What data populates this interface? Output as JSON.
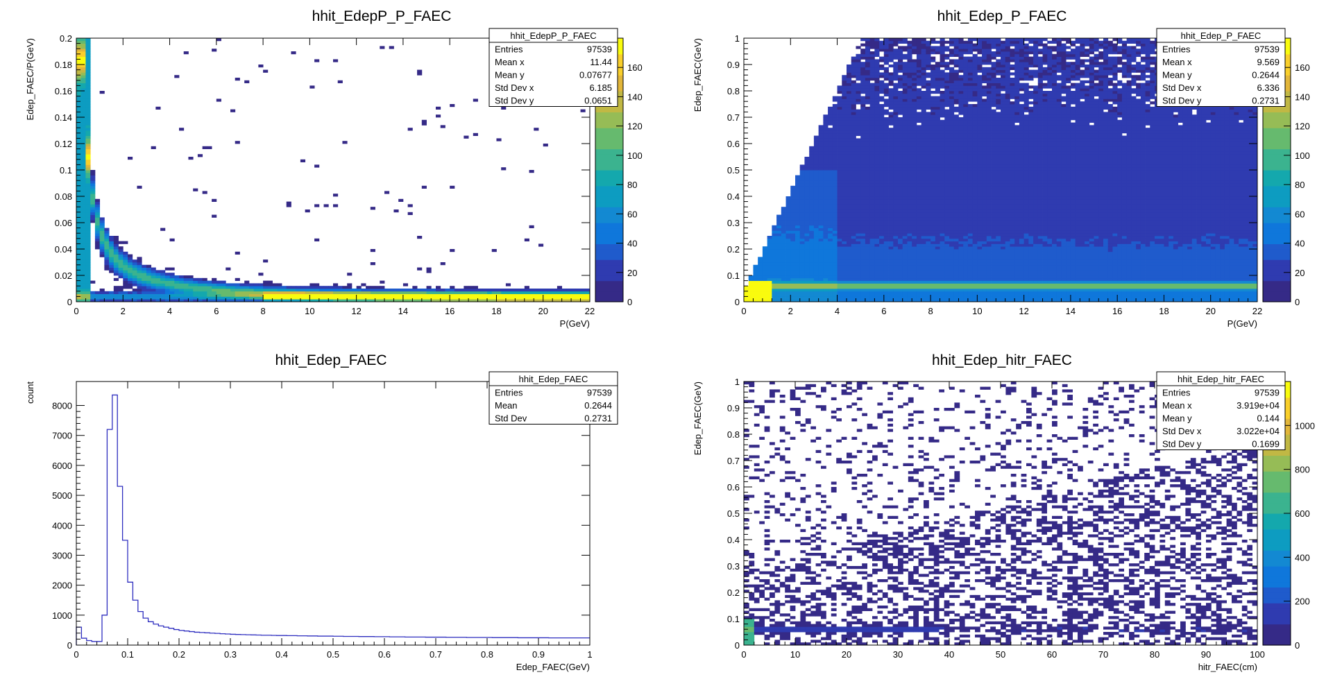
{
  "chart_data": [
    {
      "type": "heatmap",
      "title": "hhit_EdepP_P_FAEC",
      "xlabel": "P(GeV)",
      "ylabel": "Edep_FAEC/P(GeV)",
      "xlim": [
        0,
        22
      ],
      "ylim": [
        0,
        0.2
      ],
      "x_ticks": [
        "0",
        "2",
        "4",
        "6",
        "8",
        "10",
        "12",
        "14",
        "16",
        "18",
        "20",
        "22"
      ],
      "y_ticks": [
        "0",
        "0.02",
        "0.04",
        "0.06",
        "0.08",
        "0.1",
        "0.12",
        "0.14",
        "0.16",
        "0.18",
        "0.2"
      ],
      "z_ticks": [
        "0",
        "20",
        "40",
        "60",
        "80",
        "100",
        "120",
        "140",
        "160"
      ],
      "zlim": [
        0,
        180
      ],
      "grid": false,
      "stats": {
        "name": "hhit_EdepP_P_FAEC",
        "rows": [
          {
            "label": "Entries",
            "value": "97539"
          },
          {
            "label": "Mean x",
            "value": "11.44"
          },
          {
            "label": "Mean y",
            "value": "0.07677"
          },
          {
            "label": "Std Dev x",
            "value": "6.185"
          },
          {
            "label": "Std Dev y",
            "value": "0.0651"
          }
        ]
      },
      "density_model": "E/P band ~ 0.06/P concentrated at low y, ridge near y≈0.004 across P"
    },
    {
      "type": "heatmap",
      "title": "hhit_Edep_P_FAEC",
      "xlabel": "P(GeV)",
      "ylabel": "Edep_FAEC(GeV)",
      "xlim": [
        0,
        22
      ],
      "ylim": [
        0,
        1
      ],
      "x_ticks": [
        "0",
        "2",
        "4",
        "6",
        "8",
        "10",
        "12",
        "14",
        "16",
        "18",
        "20",
        "22"
      ],
      "y_ticks": [
        "0",
        "0.1",
        "0.2",
        "0.3",
        "0.4",
        "0.5",
        "0.6",
        "0.7",
        "0.8",
        "0.9",
        "1"
      ],
      "z_ticks": [
        "0",
        "20",
        "40",
        "60",
        "80",
        "100",
        "120",
        "140",
        "160"
      ],
      "zlim": [
        0,
        180
      ],
      "grid": false,
      "stats": {
        "name": "hhit_Edep_P_FAEC",
        "rows": [
          {
            "label": "Entries",
            "value": "97539"
          },
          {
            "label": "Mean x",
            "value": "9.569"
          },
          {
            "label": "Mean y",
            "value": "0.2644"
          },
          {
            "label": "Std Dev x",
            "value": "6.336"
          },
          {
            "label": "Std Dev y",
            "value": "0.2731"
          }
        ]
      },
      "density_model": "ridge at Edep≈0.06 GeV across all P, diffuse population above, empty wedge at low P high Edep"
    },
    {
      "type": "line",
      "title": "hhit_Edep_FAEC",
      "xlabel": "Edep_FAEC(GeV)",
      "ylabel": "count",
      "xlim": [
        0,
        1
      ],
      "ylim": [
        0,
        8800
      ],
      "x_ticks": [
        "0",
        "0.1",
        "0.2",
        "0.3",
        "0.4",
        "0.5",
        "0.6",
        "0.7",
        "0.8",
        "0.9",
        "1"
      ],
      "y_ticks": [
        "0",
        "1000",
        "2000",
        "3000",
        "4000",
        "5000",
        "6000",
        "7000",
        "8000"
      ],
      "bin_width": 0.01,
      "x": [
        0.0,
        0.01,
        0.02,
        0.03,
        0.04,
        0.05,
        0.06,
        0.07,
        0.08,
        0.09,
        0.1,
        0.11,
        0.12,
        0.13,
        0.14,
        0.15,
        0.16,
        0.17,
        0.18,
        0.19,
        0.2,
        0.21,
        0.22,
        0.23,
        0.24,
        0.25,
        0.26,
        0.27,
        0.28,
        0.29,
        0.3,
        0.31,
        0.32,
        0.33,
        0.34,
        0.35,
        0.36,
        0.37,
        0.38,
        0.39,
        0.4,
        0.41,
        0.42,
        0.43,
        0.44,
        0.45,
        0.46,
        0.47,
        0.48,
        0.49,
        0.5,
        0.51,
        0.52,
        0.53,
        0.54,
        0.55,
        0.56,
        0.57,
        0.58,
        0.59,
        0.6,
        0.61,
        0.62,
        0.63,
        0.64,
        0.65,
        0.66,
        0.67,
        0.68,
        0.69,
        0.7,
        0.71,
        0.72,
        0.73,
        0.74,
        0.75,
        0.76,
        0.77,
        0.78,
        0.79,
        0.8,
        0.81,
        0.82,
        0.83,
        0.84,
        0.85,
        0.86,
        0.87,
        0.88,
        0.89,
        0.9,
        0.91,
        0.92,
        0.93,
        0.94,
        0.95,
        0.96,
        0.97,
        0.98,
        0.99
      ],
      "values": [
        600,
        230,
        150,
        120,
        120,
        1000,
        7200,
        8350,
        5300,
        3500,
        2100,
        1500,
        1120,
        900,
        780,
        700,
        640,
        600,
        560,
        520,
        490,
        470,
        450,
        430,
        420,
        410,
        400,
        390,
        380,
        370,
        360,
        355,
        350,
        345,
        340,
        335,
        330,
        330,
        325,
        320,
        320,
        315,
        315,
        310,
        310,
        305,
        305,
        300,
        300,
        300,
        295,
        295,
        290,
        290,
        290,
        285,
        285,
        285,
        280,
        280,
        280,
        275,
        275,
        275,
        270,
        270,
        270,
        270,
        265,
        265,
        265,
        265,
        260,
        260,
        260,
        260,
        255,
        255,
        255,
        255,
        255,
        250,
        250,
        250,
        250,
        250,
        245,
        245,
        245,
        245,
        245,
        245,
        240,
        240,
        240,
        240,
        240,
        240,
        240,
        240
      ],
      "series": [
        {
          "color": "#2d2dbf"
        }
      ],
      "stats": {
        "name": "hhit_Edep_FAEC",
        "rows": [
          {
            "label": "Entries",
            "value": "97539"
          },
          {
            "label": "Mean",
            "value": "0.2644"
          },
          {
            "label": "Std Dev",
            "value": "0.2731"
          }
        ]
      }
    },
    {
      "type": "heatmap",
      "title": "hhit_Edep_hitr_FAEC",
      "xlabel": "hitr_FAEC(cm)",
      "ylabel": "Edep_FAEC(GeV)",
      "xlim": [
        0,
        100
      ],
      "ylim": [
        0,
        1
      ],
      "x_ticks": [
        "0",
        "10",
        "20",
        "30",
        "40",
        "50",
        "60",
        "70",
        "80",
        "90",
        "100"
      ],
      "y_ticks": [
        "0",
        "0.1",
        "0.2",
        "0.3",
        "0.4",
        "0.5",
        "0.6",
        "0.7",
        "0.8",
        "0.9",
        "1"
      ],
      "z_ticks": [
        "0",
        "200",
        "400",
        "600",
        "800",
        "1000"
      ],
      "zlim": [
        0,
        1200
      ],
      "grid": false,
      "stats": {
        "name": "hhit_Edep_hitr_FAEC",
        "rows": [
          {
            "label": "Entries",
            "value": "97539"
          },
          {
            "label": "Mean x",
            "value": "3.919e+04"
          },
          {
            "label": "Mean y",
            "value": "0.144"
          },
          {
            "label": "Std Dev x",
            "value": "3.022e+04"
          },
          {
            "label": "Std Dev y",
            "value": "0.1699"
          }
        ]
      },
      "density_model": "dense band at low Edep across radius, hot spot near r≈0, sparse scatter up to Edep=1"
    }
  ],
  "colors": {
    "palette": [
      "#352a87",
      "#2f3bb0",
      "#1f5bcc",
      "#0f77db",
      "#1389d2",
      "#0d9cc1",
      "#14a8ad",
      "#3bb38f",
      "#66ba6e",
      "#96bc56",
      "#c1b844",
      "#e2b63a",
      "#f9cf2b",
      "#f9fb0e"
    ],
    "hist_line": "#2d2dbf",
    "empty": "#ffffff"
  }
}
